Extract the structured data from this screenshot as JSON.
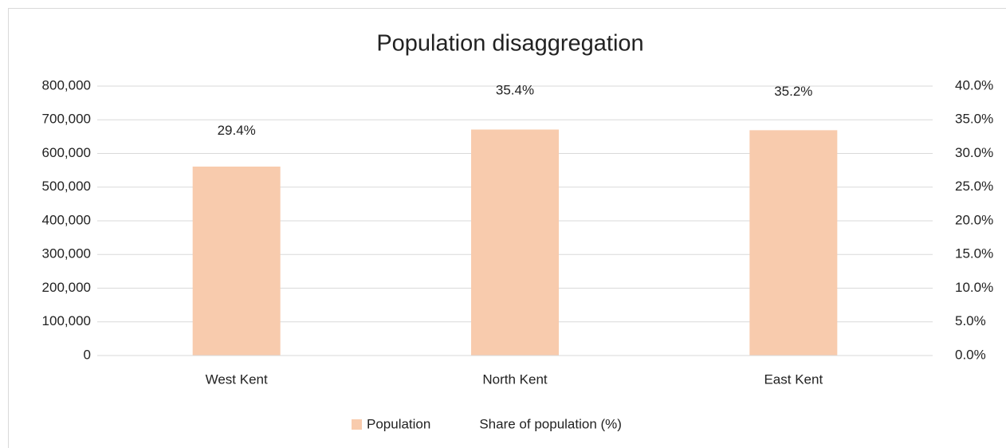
{
  "chart_data": {
    "type": "bar",
    "title": "Population disaggregation",
    "categories": [
      "West Kent",
      "North Kent",
      "East Kent"
    ],
    "series": [
      {
        "name": "Population",
        "color": "#f8cbad",
        "values": [
          561000,
          671000,
          669000
        ]
      },
      {
        "name": "Share of population (%)",
        "axis": "y2",
        "values": [
          29.4,
          35.4,
          35.2
        ],
        "value_labels": [
          "29.4%",
          "35.4%",
          "35.2%"
        ]
      }
    ],
    "ylim": [
      0,
      800000
    ],
    "yticks": [
      0,
      {
        "value": 100000,
        "label": "100,000"
      },
      {
        "value": 200000,
        "label": "200,000"
      },
      {
        "value": 300000,
        "label": "300,000"
      },
      {
        "value": 400000,
        "label": "400,000"
      },
      {
        "value": 500000,
        "label": "500,000"
      },
      {
        "value": 600000,
        "label": "600,000"
      },
      {
        "value": 700000,
        "label": "700,000"
      },
      {
        "value": 800000,
        "label": "800,000"
      }
    ],
    "y2lim": [
      0,
      40
    ],
    "y2ticks": [
      {
        "value": 0,
        "label": "0.0%"
      },
      {
        "value": 5,
        "label": "5.0%"
      },
      {
        "value": 10,
        "label": "10.0%"
      },
      {
        "value": 15,
        "label": "15.0%"
      },
      {
        "value": 20,
        "label": "20.0%"
      },
      {
        "value": 25,
        "label": "25.0%"
      },
      {
        "value": 30,
        "label": "30.0%"
      },
      {
        "value": 35,
        "label": "35.0%"
      },
      {
        "value": 40,
        "label": "40.0%"
      }
    ],
    "grid": true,
    "legend": "bottom"
  }
}
